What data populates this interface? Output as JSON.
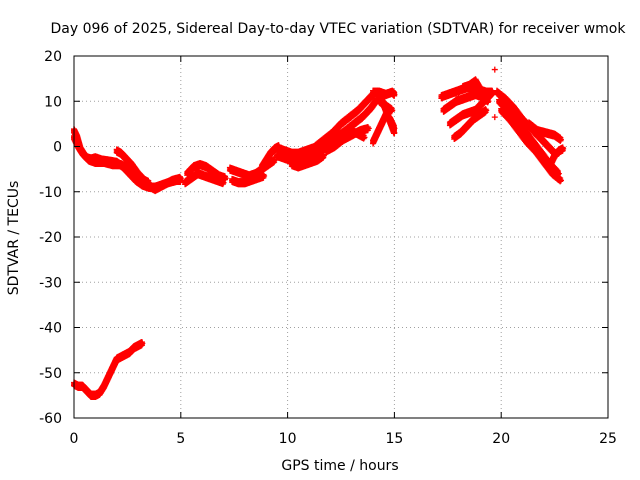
{
  "chart_data": {
    "type": "scatter",
    "title": "Day 096 of 2025, Sidereal Day-to-day VTEC variation (SDTVAR) for receiver wmok",
    "xlabel": "GPS time / hours",
    "ylabel": "SDTVAR / TECUs",
    "xlim": [
      0,
      25
    ],
    "ylim": [
      -60,
      20
    ],
    "xticks": [
      0,
      5,
      10,
      15,
      20,
      25
    ],
    "yticks": [
      -60,
      -50,
      -40,
      -30,
      -20,
      -10,
      0,
      10,
      20
    ],
    "grid": true,
    "marker": "+",
    "color": "#ff0000",
    "series": [
      {
        "name": "main-0",
        "x": [
          0.0,
          0.2,
          0.4,
          0.6,
          0.8,
          1.0,
          1.3,
          1.6,
          2.0,
          2.3,
          2.6,
          2.9,
          3.2,
          3.5,
          3.8,
          4.1,
          4.4,
          4.8,
          5.0
        ],
        "y": [
          2,
          0,
          -1.5,
          -2.5,
          -2.8,
          -2.5,
          -3,
          -3.2,
          -3.5,
          -4.5,
          -6,
          -7.5,
          -8.5,
          -9,
          -9,
          -8.5,
          -8,
          -7.5,
          -7.5
        ]
      },
      {
        "name": "main-1",
        "x": [
          0.0,
          0.15,
          0.3,
          0.5,
          0.7,
          1.0,
          1.4,
          1.8,
          2.2,
          2.6,
          3.0,
          3.4,
          3.8,
          4.2,
          4.6,
          5.0
        ],
        "y": [
          3.5,
          2,
          -0.5,
          -2,
          -3,
          -3.5,
          -3.5,
          -4,
          -4,
          -5,
          -6.5,
          -8.5,
          -9.5,
          -8.5,
          -7.5,
          -7
        ]
      },
      {
        "name": "main-2",
        "x": [
          2.0,
          2.2,
          2.4,
          2.7,
          3.0,
          3.3,
          3.5
        ],
        "y": [
          -1,
          -1.5,
          -2.5,
          -4,
          -6,
          -7.5,
          -8
        ]
      },
      {
        "name": "main-3",
        "x": [
          5.3,
          5.6,
          5.9,
          6.2,
          6.5,
          6.8,
          7.1
        ],
        "y": [
          -6,
          -4.5,
          -4,
          -4.5,
          -5.5,
          -6.5,
          -7
        ]
      },
      {
        "name": "main-4",
        "x": [
          5.2,
          5.5,
          5.8,
          6.1,
          6.4,
          6.7,
          7.0
        ],
        "y": [
          -8,
          -7,
          -6,
          -6.5,
          -7,
          -7.5,
          -8
        ]
      },
      {
        "name": "main-5",
        "x": [
          7.3,
          7.6,
          7.9,
          8.2,
          8.5,
          8.8,
          9.1,
          9.4
        ],
        "y": [
          -5,
          -5.5,
          -6,
          -6.5,
          -6,
          -5,
          -4,
          -3
        ]
      },
      {
        "name": "main-6",
        "x": [
          7.4,
          7.7,
          8.0,
          8.3,
          8.6,
          8.9
        ],
        "y": [
          -7.5,
          -8,
          -8,
          -7.5,
          -7,
          -6.5
        ]
      },
      {
        "name": "main-7",
        "x": [
          8.8,
          9.0,
          9.2,
          9.4,
          9.6
        ],
        "y": [
          -4.5,
          -3,
          -1.5,
          -0.5,
          0
        ]
      },
      {
        "name": "main-8",
        "x": [
          9.5,
          9.8,
          10.1,
          10.4,
          10.7,
          11.0,
          11.3,
          11.6
        ],
        "y": [
          -2,
          -2.5,
          -3,
          -3,
          -2.5,
          -2,
          -1.5,
          -1
        ]
      },
      {
        "name": "main-9",
        "x": [
          9.6,
          9.9,
          10.2,
          10.5,
          10.8,
          11.1,
          11.4
        ],
        "y": [
          -0.5,
          -1,
          -1.5,
          -1.5,
          -1,
          -0.5,
          0
        ]
      },
      {
        "name": "main-10",
        "x": [
          10.2,
          10.5,
          10.8,
          11.1,
          11.4,
          11.7
        ],
        "y": [
          -4,
          -4.5,
          -4,
          -3.5,
          -3,
          -2
        ]
      },
      {
        "name": "main-11",
        "x": [
          11.5,
          11.9,
          12.3,
          12.7,
          13.1,
          13.5,
          13.9,
          14.2
        ],
        "y": [
          -1,
          0.5,
          2,
          3.5,
          5,
          6.5,
          8.5,
          10.5
        ]
      },
      {
        "name": "main-12",
        "x": [
          11.3,
          11.7,
          12.1,
          12.5,
          12.9,
          13.3,
          13.7,
          14.1
        ],
        "y": [
          0,
          1.5,
          3,
          5,
          6.5,
          8,
          10,
          12
        ]
      },
      {
        "name": "main-13",
        "x": [
          11.8,
          12.2,
          12.6,
          13.0,
          13.4,
          13.8
        ],
        "y": [
          -1,
          0,
          1.5,
          2.5,
          3.5,
          4
        ]
      },
      {
        "name": "main-14",
        "x": [
          12.0,
          12.4,
          12.8,
          13.2,
          13.6
        ],
        "y": [
          1,
          2.5,
          3.5,
          3,
          2
        ]
      },
      {
        "name": "main-15",
        "x": [
          14.0,
          14.3,
          14.6,
          14.9,
          15.0
        ],
        "y": [
          12,
          12,
          11.5,
          12,
          11.5
        ]
      },
      {
        "name": "main-16",
        "x": [
          14.0,
          14.2,
          14.4,
          14.6,
          14.8,
          15.0
        ],
        "y": [
          1,
          3,
          5,
          7,
          6,
          4
        ]
      },
      {
        "name": "main-17",
        "x": [
          14.2,
          14.4,
          14.6,
          14.8,
          15.0
        ],
        "y": [
          12,
          10.5,
          8,
          5.5,
          3
        ]
      },
      {
        "name": "main-18",
        "x": [
          14.3,
          14.6,
          14.9
        ],
        "y": [
          10,
          9,
          8
        ]
      },
      {
        "name": "main-19",
        "x": [
          17.2,
          17.5,
          17.8,
          18.1,
          18.4,
          18.7,
          19.0,
          19.3,
          19.6
        ],
        "y": [
          11,
          11.5,
          12,
          12.5,
          13,
          13,
          12.5,
          12,
          12
        ]
      },
      {
        "name": "main-20",
        "x": [
          17.3,
          17.6,
          17.9,
          18.2,
          18.5,
          18.8,
          19.1,
          19.4
        ],
        "y": [
          8,
          9,
          10,
          10.5,
          11,
          11.5,
          11,
          10
        ]
      },
      {
        "name": "main-21",
        "x": [
          17.6,
          17.9,
          18.2,
          18.5,
          18.8,
          19.1,
          19.4,
          19.6
        ],
        "y": [
          5,
          6,
          7,
          7.5,
          8,
          9.5,
          11,
          12
        ]
      },
      {
        "name": "main-22",
        "x": [
          17.8,
          18.1,
          18.4,
          18.7,
          19.0,
          19.3
        ],
        "y": [
          2,
          3,
          4.5,
          6,
          7,
          8
        ]
      },
      {
        "name": "main-23",
        "x": [
          18.2,
          18.5,
          18.8,
          19.1
        ],
        "y": [
          13,
          13.5,
          14.5,
          12
        ]
      },
      {
        "name": "main-24",
        "x": [
          19.8,
          20.2,
          20.6,
          21.0,
          21.4,
          21.8,
          22.2,
          22.6
        ],
        "y": [
          12,
          10.5,
          8.5,
          6,
          4,
          2,
          0,
          -2
        ]
      },
      {
        "name": "main-25",
        "x": [
          19.9,
          20.3,
          20.7,
          21.1,
          21.5,
          21.9,
          22.3,
          22.7
        ],
        "y": [
          10,
          8,
          6,
          3.5,
          1,
          -1.5,
          -4,
          -6
        ]
      },
      {
        "name": "main-26",
        "x": [
          20.0,
          20.4,
          20.8,
          21.2,
          21.6,
          22.0,
          22.4,
          22.8
        ],
        "y": [
          8,
          6,
          3.5,
          1,
          -1,
          -3.5,
          -6,
          -7.5
        ]
      },
      {
        "name": "main-27",
        "x": [
          21.3,
          21.7,
          22.1,
          22.5,
          22.8
        ],
        "y": [
          5,
          3.5,
          3,
          2.5,
          1.5
        ]
      },
      {
        "name": "main-28",
        "x": [
          22.3,
          22.5,
          22.7,
          22.9
        ],
        "y": [
          -4,
          -2,
          -1,
          -0.5
        ]
      },
      {
        "name": "low-segment",
        "x": [
          0.0,
          0.2,
          0.4,
          0.6,
          0.8,
          1.0,
          1.2,
          1.4,
          1.6,
          1.8,
          2.0,
          2.2,
          2.4,
          2.6,
          2.8,
          3.0,
          3.2
        ],
        "y": [
          -52.5,
          -53,
          -53,
          -54,
          -55,
          -55,
          -54.5,
          -53,
          -51,
          -49,
          -47,
          -46.5,
          -46,
          -45.5,
          -44.5,
          -44,
          -43.5
        ]
      }
    ],
    "isolated_points": [
      {
        "x": 19.7,
        "y": 6.5
      },
      {
        "x": 19.7,
        "y": 17
      },
      {
        "x": 18.0,
        "y": 11
      }
    ]
  }
}
